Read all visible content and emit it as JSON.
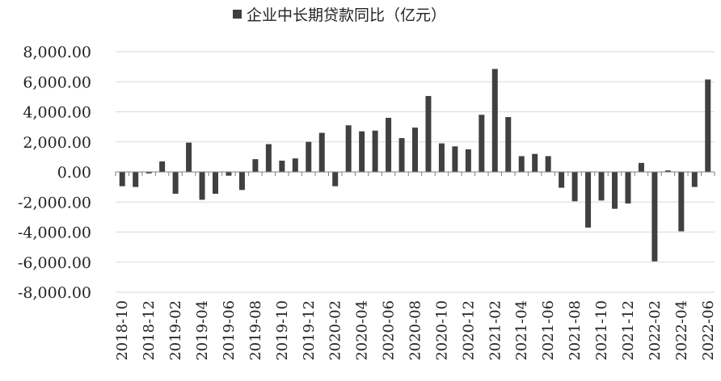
{
  "legend": {
    "label": "企业中长期贷款同比（亿元）"
  },
  "colors": {
    "bar": "#404040",
    "grid": "#d9d9d9",
    "axis": "#7f7f7f",
    "text": "#222222"
  },
  "chart_data": {
    "type": "bar",
    "title": "",
    "xlabel": "",
    "ylabel": "",
    "ylim": [
      -8000,
      8000
    ],
    "yticks": [
      {
        "value": 8000,
        "label": "8,000.00"
      },
      {
        "value": 6000,
        "label": "6,000.00"
      },
      {
        "value": 4000,
        "label": "4,000.00"
      },
      {
        "value": 2000,
        "label": "2,000.00"
      },
      {
        "value": 0,
        "label": "0.00"
      },
      {
        "value": -2000,
        "label": "-2,000.00"
      },
      {
        "value": -4000,
        "label": "-4,000.00"
      },
      {
        "value": -6000,
        "label": "-6,000.00"
      },
      {
        "value": -8000,
        "label": "-8,000.00"
      }
    ],
    "grid": true,
    "legend_position": "top",
    "categories": [
      "2018-10",
      "2018-11",
      "2018-12",
      "2019-01",
      "2019-02",
      "2019-03",
      "2019-04",
      "2019-05",
      "2019-06",
      "2019-07",
      "2019-08",
      "2019-09",
      "2019-10",
      "2019-11",
      "2019-12",
      "2020-01",
      "2020-02",
      "2020-03",
      "2020-04",
      "2020-05",
      "2020-06",
      "2020-07",
      "2020-08",
      "2020-09",
      "2020-10",
      "2020-11",
      "2020-12",
      "2021-01",
      "2021-02",
      "2021-03",
      "2021-04",
      "2021-05",
      "2021-06",
      "2021-07",
      "2021-08",
      "2021-09",
      "2021-10",
      "2021-11",
      "2021-12",
      "2022-01",
      "2022-02",
      "2022-03",
      "2022-04",
      "2022-05",
      "2022-06"
    ],
    "tick_labels": [
      "2018-10",
      "2018-12",
      "2019-02",
      "2019-04",
      "2019-06",
      "2019-08",
      "2019-10",
      "2019-12",
      "2020-02",
      "2020-04",
      "2020-06",
      "2020-08",
      "2020-10",
      "2020-12",
      "2021-02",
      "2021-04",
      "2021-06",
      "2021-08",
      "2021-10",
      "2021-12",
      "2022-02",
      "2022-04",
      "2022-06"
    ],
    "series": [
      {
        "name": "企业中长期贷款同比（亿元）",
        "values": [
          -950,
          -1000,
          -100,
          700,
          -1450,
          1950,
          -1850,
          -1450,
          -250,
          -1200,
          850,
          1850,
          750,
          900,
          2000,
          2600,
          -950,
          3100,
          2700,
          2750,
          3600,
          2250,
          2950,
          5050,
          1900,
          1700,
          1500,
          3800,
          6850,
          3650,
          1050,
          1200,
          1050,
          -1050,
          -1950,
          -3700,
          -1900,
          -2450,
          -2100,
          600,
          -5950,
          100,
          -3950,
          -1000,
          6150
        ]
      }
    ]
  }
}
